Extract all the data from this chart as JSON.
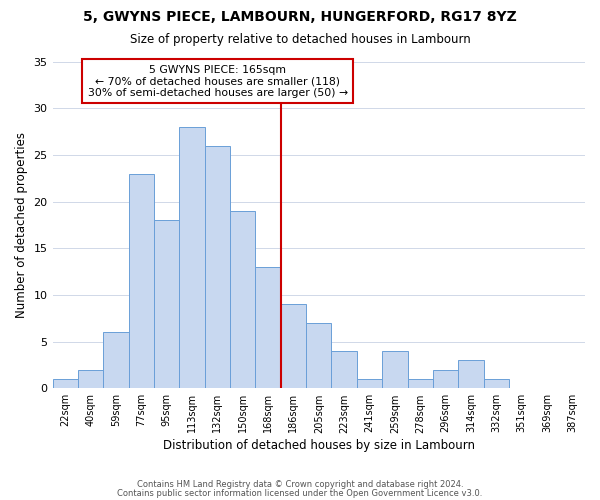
{
  "title": "5, GWYNS PIECE, LAMBOURN, HUNGERFORD, RG17 8YZ",
  "subtitle": "Size of property relative to detached houses in Lambourn",
  "xlabel": "Distribution of detached houses by size in Lambourn",
  "ylabel": "Number of detached properties",
  "bar_labels": [
    "22sqm",
    "40sqm",
    "59sqm",
    "77sqm",
    "95sqm",
    "113sqm",
    "132sqm",
    "150sqm",
    "168sqm",
    "186sqm",
    "205sqm",
    "223sqm",
    "241sqm",
    "259sqm",
    "278sqm",
    "296sqm",
    "314sqm",
    "332sqm",
    "351sqm",
    "369sqm",
    "387sqm"
  ],
  "bar_values": [
    1,
    2,
    6,
    23,
    18,
    28,
    26,
    19,
    13,
    9,
    7,
    4,
    1,
    4,
    1,
    2,
    3,
    1,
    0,
    0,
    0
  ],
  "bar_color": "#c8d8f0",
  "bar_edgecolor": "#6a9fd8",
  "vline_index": 8,
  "vline_color": "#cc0000",
  "annotation_text": "5 GWYNS PIECE: 165sqm\n← 70% of detached houses are smaller (118)\n30% of semi-detached houses are larger (50) →",
  "annotation_box_edgecolor": "#cc0000",
  "ylim": [
    0,
    35
  ],
  "yticks": [
    0,
    5,
    10,
    15,
    20,
    25,
    30,
    35
  ],
  "footer1": "Contains HM Land Registry data © Crown copyright and database right 2024.",
  "footer2": "Contains public sector information licensed under the Open Government Licence v3.0.",
  "background_color": "#ffffff",
  "grid_color": "#d0d8e8"
}
